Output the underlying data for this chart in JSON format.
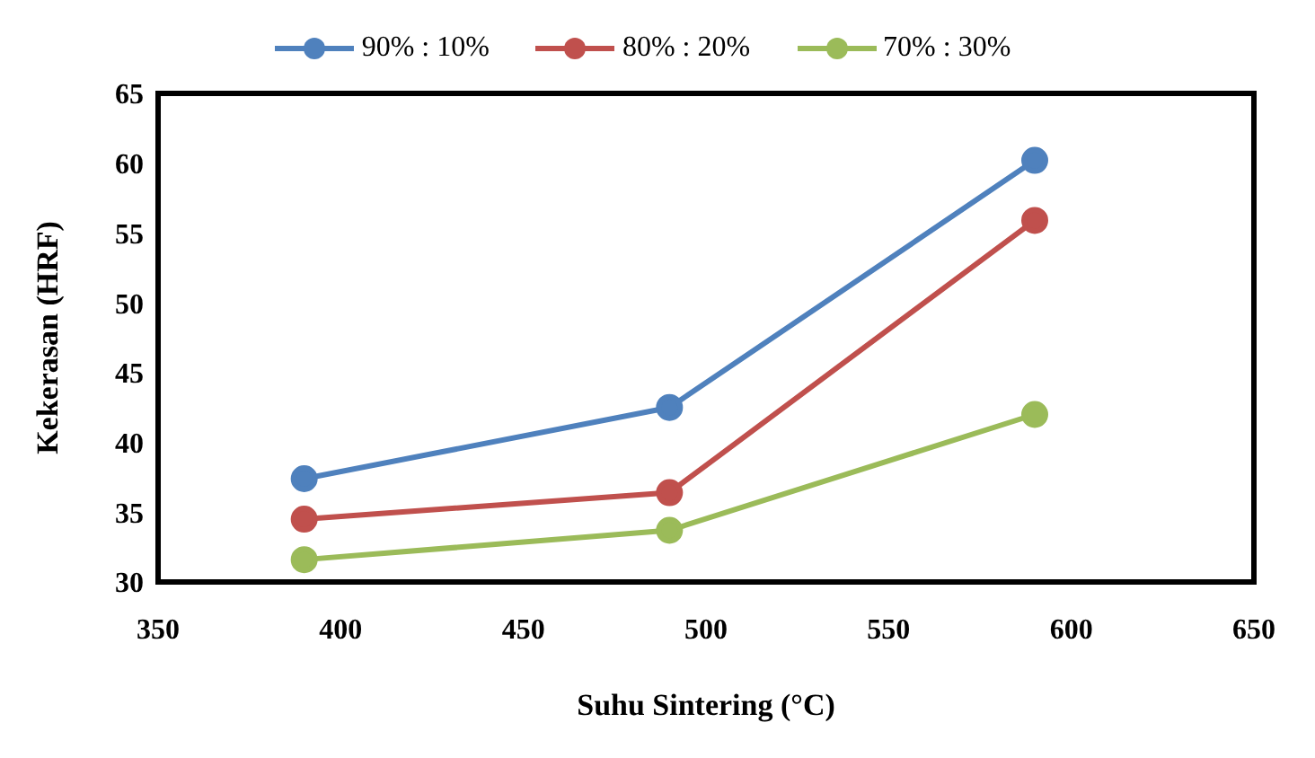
{
  "chart_data": {
    "type": "line",
    "xlabel": "Suhu Sintering (°C)",
    "ylabel": "Kekerasan (HRF)",
    "x": [
      390,
      490,
      590
    ],
    "series": [
      {
        "name": "90% : 10%",
        "color": "#4f81bd",
        "values": [
          37.4,
          42.5,
          60.2
        ]
      },
      {
        "name": "80% : 20%",
        "color": "#c0504d",
        "values": [
          34.5,
          36.4,
          55.9
        ]
      },
      {
        "name": "70% : 30%",
        "color": "#9bbb59",
        "values": [
          31.6,
          33.7,
          42
        ]
      }
    ],
    "xlim": [
      350,
      650
    ],
    "xticks": [
      350,
      400,
      450,
      500,
      550,
      600,
      650
    ],
    "ylim": [
      30,
      65
    ],
    "yticks": [
      30,
      35,
      40,
      45,
      50,
      55,
      60,
      65
    ],
    "grid": false,
    "legend": "top",
    "marker": "circle",
    "line_style": "solid"
  }
}
